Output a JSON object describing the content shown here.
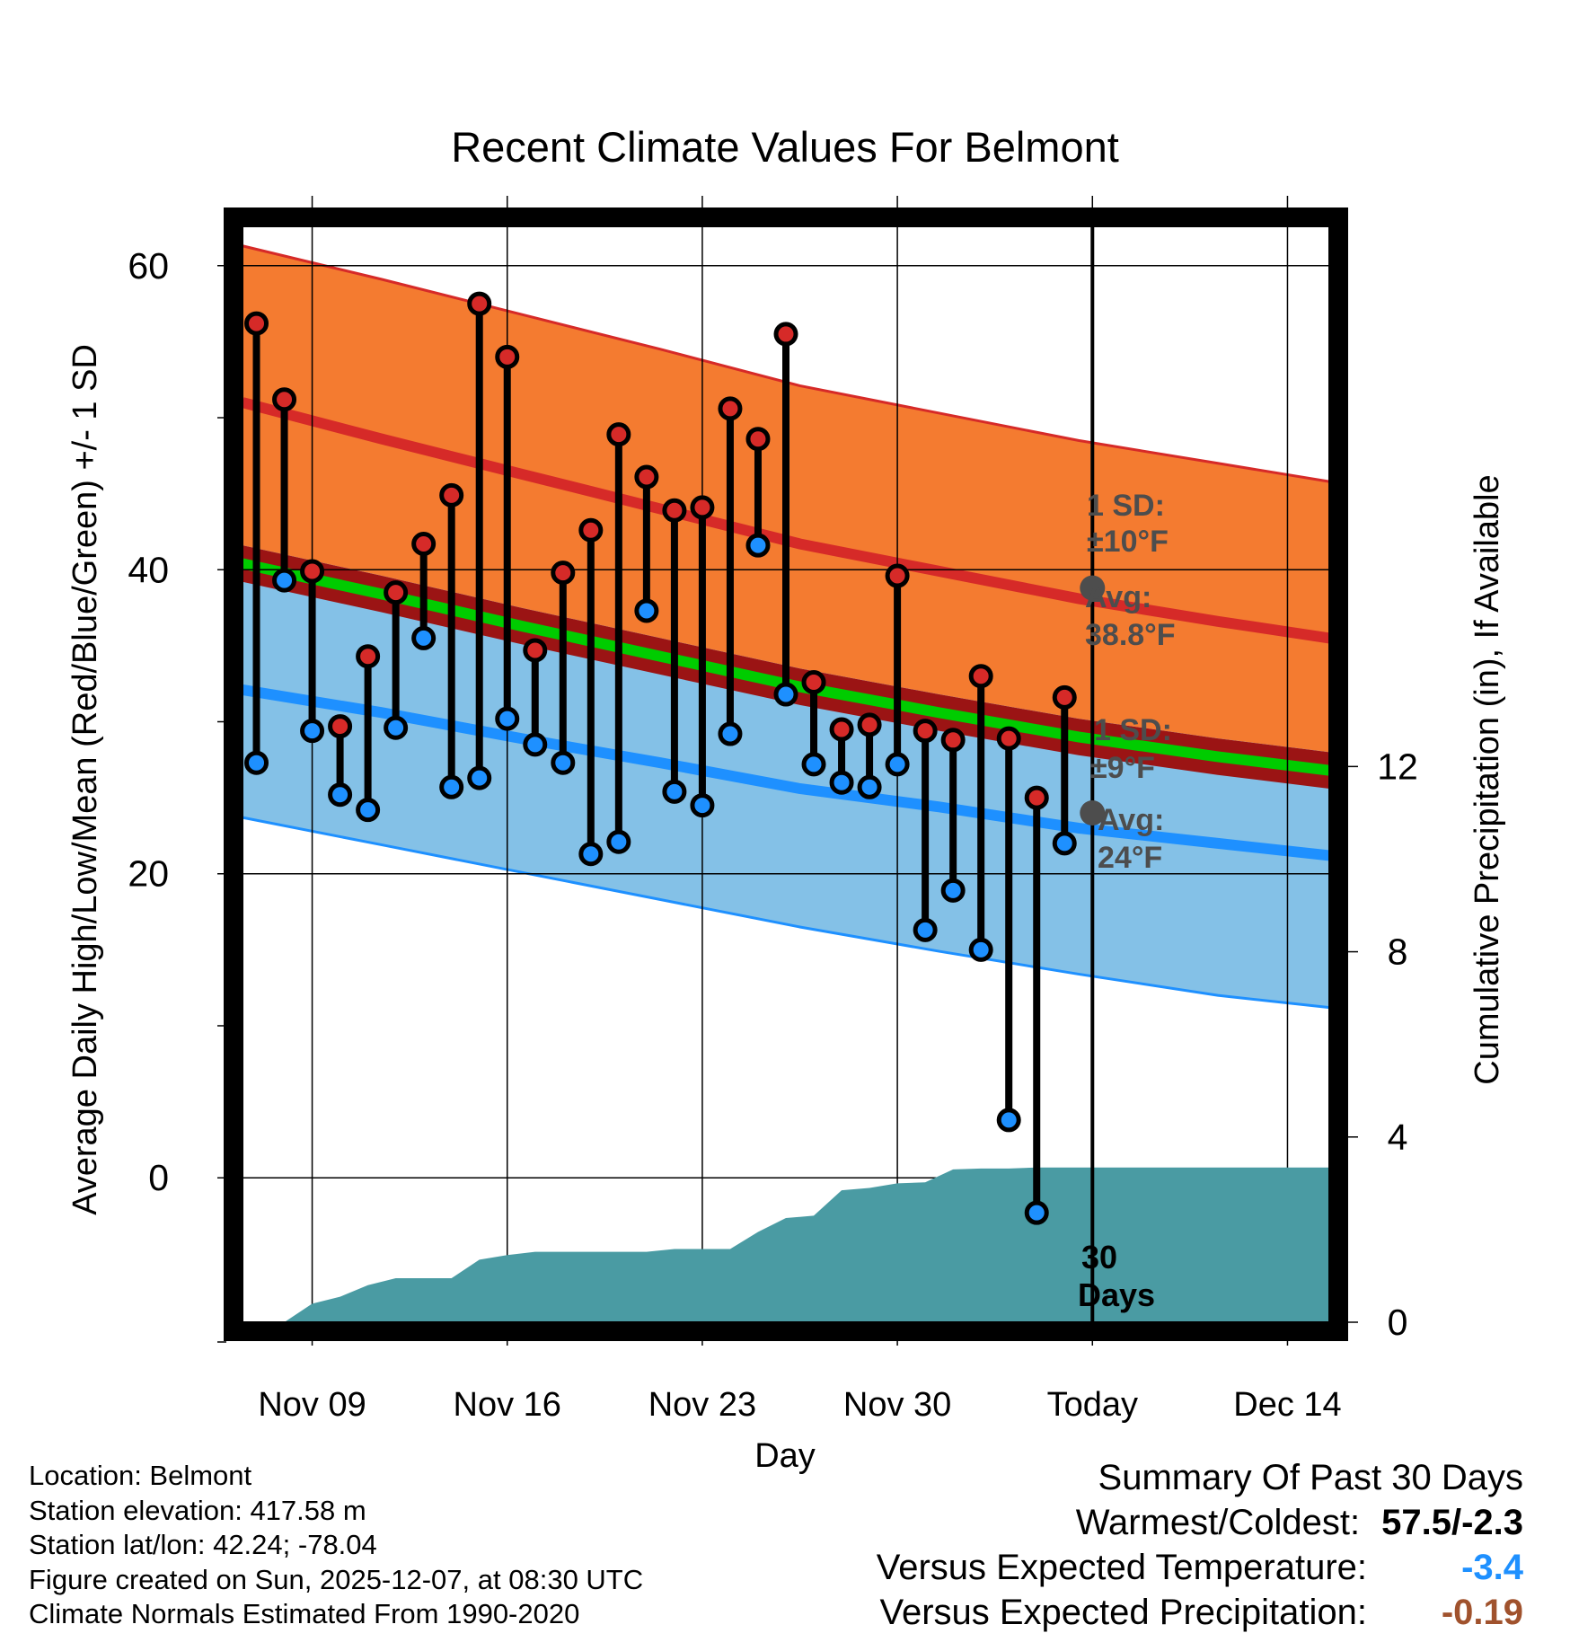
{
  "chart_data": {
    "type": "line",
    "title": "Recent Climate Values For Belmont",
    "xlabel": "Day",
    "ylabel_left": "Average Daily High/Low/Mean (Red/Blue/Green) +/- 1 SD",
    "ylabel_right": "Cumulative Precipitation (in), If Available",
    "x_range_days": [
      0,
      39
    ],
    "x_ticks": [
      {
        "day": 2.5,
        "label": "Nov 09"
      },
      {
        "day": 9.5,
        "label": "Nov 16"
      },
      {
        "day": 16.5,
        "label": "Nov 23"
      },
      {
        "day": 23.5,
        "label": "Nov 30"
      },
      {
        "day": 30.5,
        "label": "Today"
      },
      {
        "day": 37.5,
        "label": "Dec 14"
      }
    ],
    "y_left_range": [
      -9.5,
      63
    ],
    "y_left_ticks": [
      0,
      20,
      40,
      60
    ],
    "y_left_minor_ticks": [
      10,
      30,
      50
    ],
    "y_right_range": [
      0,
      23.8
    ],
    "y_right_ticks": [
      0,
      4,
      8,
      12
    ],
    "today_day": 30.5,
    "normals": {
      "days": [
        0,
        5,
        10,
        15,
        20,
        25,
        30,
        35,
        39
      ],
      "high_upper": [
        61.3,
        59.1,
        56.8,
        54.5,
        52.1,
        50.3,
        48.5,
        47.0,
        45.8
      ],
      "high_mean": [
        51.0,
        48.6,
        46.3,
        44.0,
        41.7,
        39.9,
        38.1,
        36.6,
        35.5
      ],
      "mean": [
        41.6,
        39.6,
        37.5,
        35.5,
        33.5,
        31.8,
        30.2,
        28.9,
        28.0
      ],
      "low_mean": [
        32.1,
        30.6,
        28.9,
        27.3,
        25.6,
        24.4,
        23.0,
        22.0,
        21.2
      ],
      "low_lower": [
        23.7,
        21.9,
        20.1,
        18.3,
        16.5,
        14.9,
        13.4,
        12.0,
        11.2
      ]
    },
    "daily": {
      "days": [
        0.5,
        1.5,
        2.5,
        3.5,
        4.5,
        5.5,
        6.5,
        7.5,
        8.5,
        9.5,
        10.5,
        11.5,
        12.5,
        13.5,
        14.5,
        15.5,
        16.5,
        17.5,
        18.5,
        19.5,
        20.5,
        21.5,
        22.5,
        23.5,
        24.5,
        25.5,
        26.5,
        27.5,
        28.5,
        29.5
      ],
      "high": [
        56.2,
        51.2,
        39.9,
        29.7,
        34.3,
        38.5,
        41.7,
        44.9,
        57.5,
        54.0,
        34.7,
        39.8,
        42.6,
        48.9,
        46.1,
        43.9,
        44.1,
        50.6,
        48.6,
        55.5,
        32.6,
        29.5,
        29.8,
        39.6,
        29.4,
        28.8,
        33.0,
        28.9,
        25.0,
        31.6
      ],
      "low": [
        27.3,
        39.3,
        29.4,
        25.2,
        24.2,
        29.6,
        35.5,
        25.7,
        26.3,
        30.2,
        28.5,
        27.3,
        21.3,
        22.1,
        37.3,
        25.4,
        24.5,
        29.2,
        41.6,
        31.8,
        27.2,
        26.0,
        25.7,
        27.2,
        16.3,
        18.9,
        15.0,
        3.8,
        -2.3,
        22.0
      ]
    },
    "precipitation": {
      "days": [
        0,
        1.5,
        2.5,
        3.5,
        4.5,
        5.5,
        6.5,
        7.5,
        8.5,
        9.5,
        10.5,
        11.5,
        12.5,
        13.5,
        14.5,
        15.5,
        16.5,
        17.5,
        18.5,
        19.5,
        20.5,
        21.5,
        22.5,
        23.5,
        24.5,
        25.5,
        26.5,
        27.5,
        28.5,
        29.5,
        30.5,
        39
      ],
      "cumulative_in": [
        0,
        0,
        0.4,
        0.55,
        0.8,
        0.95,
        0.95,
        0.95,
        1.35,
        1.45,
        1.52,
        1.52,
        1.52,
        1.52,
        1.52,
        1.58,
        1.58,
        1.58,
        1.95,
        2.25,
        2.3,
        2.85,
        2.9,
        3.0,
        3.02,
        3.3,
        3.32,
        3.32,
        3.34,
        3.34,
        3.34,
        3.34
      ]
    },
    "annotations": {
      "high_sd_label": "1 SD:",
      "high_sd_value": "±10°F",
      "high_avg_label": "Avg:",
      "high_avg_value": "38.8°F",
      "high_avg_temp": 38.8,
      "low_sd_label": "1 SD:",
      "low_sd_value": "±9°F",
      "low_avg_label": "Avg:",
      "low_avg_value": "24°F",
      "low_avg_temp": 24,
      "window_count": "30",
      "window_unit": "Days"
    },
    "colors": {
      "high_band": "#f47b30",
      "high_line": "#d62a28",
      "low_band": "#84c1e7",
      "low_line": "#1e90ff",
      "overlap": "#9b1414",
      "mean_line": "#00cc00",
      "precip": "#4a9ba3",
      "annotation_text": "#4d4d4d",
      "high_dot": "#d62a28",
      "low_dot": "#1e90ff"
    }
  },
  "footer": {
    "location": "Location: Belmont",
    "elevation": "Station elevation: 417.58 m",
    "latlon": "Station lat/lon: 42.24; -78.04",
    "created": "Figure created on Sun, 2025-12-07, at 08:30 UTC",
    "normals": "Climate Normals Estimated From 1990-2020"
  },
  "summary": {
    "title": "Summary Of Past 30 Days",
    "warm_cold_label": "Warmest/Coldest:",
    "warm_cold_value": "57.5/-2.3",
    "temp_label": "Versus Expected Temperature:",
    "temp_value": "-3.4",
    "temp_color": "#1e90ff",
    "precip_label": "Versus Expected Precipitation:",
    "precip_value": "-0.19",
    "precip_color": "#a0522d"
  }
}
